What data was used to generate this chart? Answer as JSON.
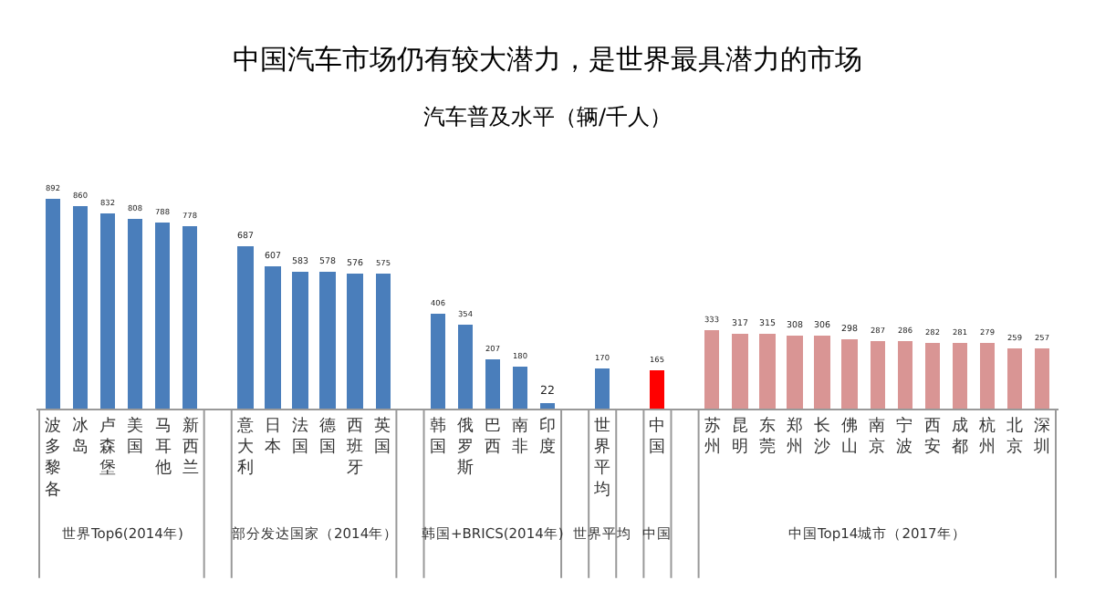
{
  "chart_data": {
    "type": "bar",
    "title": "中国汽车市场仍有较大潜力，是世界最具潜力的市场",
    "subtitle": "汽车普及水平（辆/千人）",
    "categories": [
      "波多黎各",
      "冰岛",
      "卢森堡",
      "美国",
      "马耳他",
      "新西兰",
      null,
      "意大利",
      "日本",
      "法国",
      "德国",
      "西班牙",
      "英国",
      null,
      "韩国",
      "俄罗斯",
      "巴西",
      "南非",
      "印度",
      null,
      "世界平均",
      null,
      "中国",
      null,
      "苏州",
      "昆明",
      "东莞",
      "郑州",
      "长沙",
      "佛山",
      "南京",
      "宁波",
      "西安",
      "成都",
      "杭州",
      "北京",
      "深圳"
    ],
    "values": [
      892,
      860,
      832,
      808,
      788,
      778,
      null,
      687,
      607,
      583,
      578,
      576,
      575,
      null,
      406,
      354,
      207,
      180,
      22,
      null,
      170,
      null,
      165,
      null,
      333,
      317,
      315,
      308,
      306,
      298,
      287,
      286,
      282,
      281,
      279,
      259,
      257
    ],
    "colors": [
      "#4a7ebb",
      "#4a7ebb",
      "#4a7ebb",
      "#4a7ebb",
      "#4a7ebb",
      "#4a7ebb",
      null,
      "#4a7ebb",
      "#4a7ebb",
      "#4a7ebb",
      "#4a7ebb",
      "#4a7ebb",
      "#4a7ebb",
      null,
      "#4a7ebb",
      "#4a7ebb",
      "#4a7ebb",
      "#4a7ebb",
      "#4a7ebb",
      null,
      "#4a7ebb",
      null,
      "#ff0000",
      null,
      "#d99594",
      "#d99594",
      "#d99594",
      "#d99594",
      "#d99594",
      "#d99594",
      "#d99594",
      "#d99594",
      "#d99594",
      "#d99594",
      "#d99594",
      "#d99594",
      "#d99594"
    ],
    "data_labels": true,
    "annotations": [
      "世界Top6(2014年)",
      "部分发达国家（2014年）",
      "韩国+BRICS(2014年)",
      "世界平均",
      "中国",
      "中国Top14城市（2017年）"
    ]
  }
}
